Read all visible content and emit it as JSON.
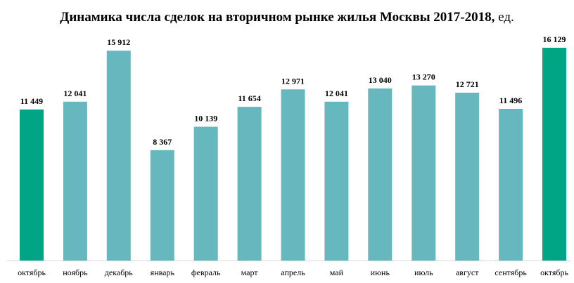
{
  "chart_data": {
    "type": "bar",
    "title": "Динамика числа сделок на вторичном рынке жилья Москвы 2017-2018,",
    "title_unit": "ед.",
    "categories": [
      "октябрь",
      "ноябрь",
      "декабрь",
      "январь",
      "февраль",
      "март",
      "апрель",
      "май",
      "июнь",
      "июль",
      "август",
      "сентябрь",
      "октябрь"
    ],
    "values": [
      11449,
      12041,
      15912,
      8367,
      10139,
      11654,
      12971,
      12041,
      13040,
      13270,
      12721,
      11496,
      16129
    ],
    "value_labels": [
      "11 449",
      "12 041",
      "15 912",
      "8 367",
      "10 139",
      "11 654",
      "12 971",
      "12 041",
      "13 040",
      "13 270",
      "12 721",
      "11 496",
      "16 129"
    ],
    "highlight_indices": [
      0,
      12
    ],
    "ylim": [
      0,
      16500
    ],
    "grid": false,
    "legend": "none",
    "colors": {
      "default": "#66b7be",
      "highlight": "#00a586",
      "axis": "#d9d9d9"
    }
  }
}
